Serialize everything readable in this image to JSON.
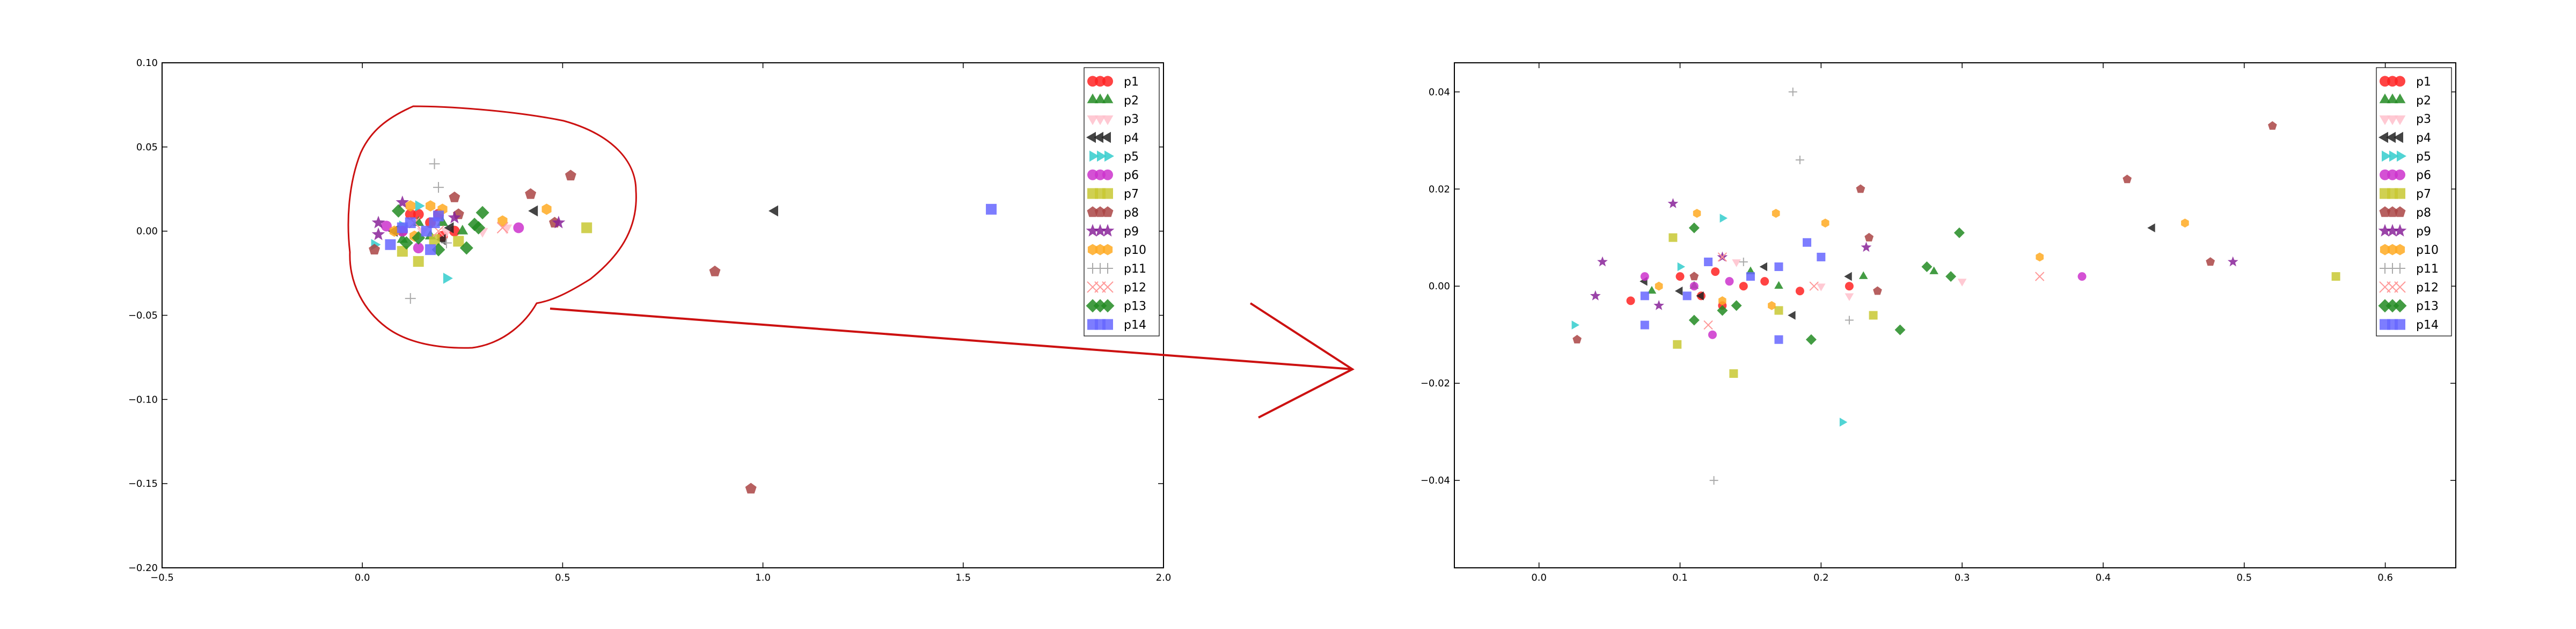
{
  "chart_data": [
    {
      "type": "scatter",
      "title": "",
      "xlabel": "",
      "ylabel": "",
      "xlim": [
        -0.5,
        2.0
      ],
      "ylim": [
        -0.2,
        0.1
      ],
      "xticks": [
        "−0.5",
        "0.0",
        "0.5",
        "1.0",
        "1.5",
        "2.0"
      ],
      "yticks": [
        "0.10",
        "0.05",
        "0.00",
        "−0.05",
        "−0.10",
        "−0.15",
        "−0.20"
      ],
      "xtick_values": [
        -0.5,
        0.0,
        0.5,
        1.0,
        1.5,
        2.0
      ],
      "ytick_values": [
        0.1,
        0.05,
        0.0,
        -0.05,
        -0.1,
        -0.15,
        -0.2
      ],
      "grid": false,
      "legend": "top-right",
      "annotation": "red freehand outline around the dense cluster with an arrow pointing to the zoomed plot",
      "series": [
        {
          "name": "p1",
          "marker": "circle",
          "color": "#ff2222",
          "points": [
            [
              0.12,
              0.01
            ],
            [
              0.17,
              0.005
            ],
            [
              0.2,
              -0.003
            ],
            [
              0.1,
              0.0
            ],
            [
              0.23,
              0.0
            ],
            [
              0.14,
              0.01
            ],
            [
              0.19,
              0.01
            ]
          ]
        },
        {
          "name": "p2",
          "marker": "triangle-up",
          "color": "#228b22",
          "points": [
            [
              0.09,
              0.0
            ],
            [
              0.14,
              0.005
            ],
            [
              0.2,
              0.005
            ],
            [
              0.25,
              0.0
            ],
            [
              0.1,
              -0.005
            ],
            [
              0.17,
              -0.003
            ]
          ]
        },
        {
          "name": "p3",
          "marker": "triangle-down",
          "color": "#ffc0cb",
          "points": [
            [
              0.21,
              0.0
            ],
            [
              0.3,
              0.0
            ],
            [
              0.36,
              0.002
            ],
            [
              0.15,
              0.0
            ]
          ]
        },
        {
          "name": "p4",
          "marker": "triangle-left",
          "color": "#222222",
          "points": [
            [
              1.03,
              0.012
            ],
            [
              0.43,
              0.012
            ],
            [
              0.08,
              0.0
            ],
            [
              0.2,
              -0.005
            ],
            [
              0.22,
              0.002
            ]
          ]
        },
        {
          "name": "p5",
          "marker": "triangle-right",
          "color": "#33cccc",
          "points": [
            [
              0.21,
              -0.028
            ],
            [
              0.03,
              -0.008
            ],
            [
              0.1,
              0.003
            ],
            [
              0.14,
              0.015
            ]
          ]
        },
        {
          "name": "p6",
          "marker": "circle",
          "color": "#cc33cc",
          "points": [
            [
              0.39,
              0.002
            ],
            [
              0.1,
              0.0
            ],
            [
              0.06,
              0.003
            ],
            [
              0.14,
              -0.01
            ]
          ]
        },
        {
          "name": "p7",
          "marker": "square",
          "color": "#c8c832",
          "points": [
            [
              0.56,
              0.002
            ],
            [
              0.14,
              -0.018
            ],
            [
              0.1,
              -0.012
            ],
            [
              0.24,
              -0.006
            ],
            [
              0.18,
              -0.005
            ]
          ]
        },
        {
          "name": "p8",
          "marker": "pentagon",
          "color": "#aa4444",
          "points": [
            [
              0.97,
              -0.153
            ],
            [
              0.88,
              -0.024
            ],
            [
              0.52,
              0.033
            ],
            [
              0.42,
              0.022
            ],
            [
              0.48,
              0.005
            ],
            [
              0.03,
              -0.011
            ],
            [
              0.23,
              0.02
            ],
            [
              0.24,
              0.01
            ]
          ]
        },
        {
          "name": "p9",
          "marker": "star",
          "color": "#882299",
          "points": [
            [
              0.49,
              0.005
            ],
            [
              0.1,
              0.017
            ],
            [
              0.04,
              0.005
            ],
            [
              0.23,
              0.008
            ],
            [
              0.04,
              -0.002
            ]
          ]
        },
        {
          "name": "p10",
          "marker": "hexagon",
          "color": "#ffaa22",
          "points": [
            [
              0.35,
              0.006
            ],
            [
              0.46,
              0.013
            ],
            [
              0.12,
              0.015
            ],
            [
              0.17,
              0.015
            ],
            [
              0.2,
              0.013
            ],
            [
              0.08,
              0.0
            ],
            [
              0.13,
              -0.003
            ]
          ]
        },
        {
          "name": "p11",
          "marker": "plus",
          "color": "#aaaaaa",
          "points": [
            [
              0.18,
              0.04
            ],
            [
              0.12,
              -0.04
            ],
            [
              0.19,
              0.026
            ],
            [
              0.21,
              -0.007
            ]
          ]
        },
        {
          "name": "p12",
          "marker": "x",
          "color": "#ff9999",
          "points": [
            [
              0.35,
              0.002
            ],
            [
              0.19,
              0.0
            ],
            [
              0.13,
              0.005
            ]
          ]
        },
        {
          "name": "p13",
          "marker": "diamond",
          "color": "#228b22",
          "points": [
            [
              0.3,
              0.011
            ],
            [
              0.28,
              0.004
            ],
            [
              0.26,
              -0.01
            ],
            [
              0.19,
              -0.011
            ],
            [
              0.11,
              -0.007
            ],
            [
              0.14,
              -0.004
            ],
            [
              0.09,
              0.012
            ],
            [
              0.29,
              0.002
            ]
          ]
        },
        {
          "name": "p14",
          "marker": "square",
          "color": "#6666ff",
          "points": [
            [
              1.57,
              0.013
            ],
            [
              0.19,
              0.009
            ],
            [
              0.16,
              0.0
            ],
            [
              0.07,
              -0.008
            ],
            [
              0.17,
              -0.011
            ],
            [
              0.1,
              0.002
            ],
            [
              0.12,
              0.005
            ],
            [
              0.18,
              0.005
            ]
          ]
        }
      ]
    },
    {
      "type": "scatter",
      "title": "",
      "xlabel": "",
      "ylabel": "",
      "xlim": [
        -0.06,
        0.65
      ],
      "ylim": [
        -0.058,
        0.046
      ],
      "xticks": [
        "0.0",
        "0.1",
        "0.2",
        "0.3",
        "0.4",
        "0.5",
        "0.6"
      ],
      "yticks": [
        "0.04",
        "0.02",
        "0.00",
        "−0.02",
        "−0.04"
      ],
      "xtick_values": [
        0.0,
        0.1,
        0.2,
        0.3,
        0.4,
        0.5,
        0.6
      ],
      "ytick_values": [
        0.04,
        0.02,
        0.0,
        -0.02,
        -0.04
      ],
      "grid": false,
      "legend": "top-right",
      "series": [
        {
          "name": "p1",
          "marker": "circle",
          "color": "#ff2222",
          "points": [
            [
              0.065,
              -0.003
            ],
            [
              0.1,
              0.002
            ],
            [
              0.115,
              -0.002
            ],
            [
              0.125,
              0.003
            ],
            [
              0.13,
              -0.004
            ],
            [
              0.145,
              0.0
            ],
            [
              0.16,
              0.001
            ],
            [
              0.185,
              -0.001
            ],
            [
              0.22,
              0.0
            ]
          ]
        },
        {
          "name": "p2",
          "marker": "triangle-up",
          "color": "#228b22",
          "points": [
            [
              0.08,
              -0.001
            ],
            [
              0.11,
              0.0
            ],
            [
              0.15,
              0.003
            ],
            [
              0.17,
              0.0
            ],
            [
              0.23,
              0.002
            ],
            [
              0.28,
              0.003
            ]
          ]
        },
        {
          "name": "p3",
          "marker": "triangle-down",
          "color": "#ffc0cb",
          "points": [
            [
              0.2,
              0.0
            ],
            [
              0.3,
              0.001
            ],
            [
              0.22,
              -0.002
            ],
            [
              0.14,
              0.005
            ]
          ]
        },
        {
          "name": "p4",
          "marker": "triangle-left",
          "color": "#222222",
          "points": [
            [
              0.435,
              0.012
            ],
            [
              0.075,
              0.001
            ],
            [
              0.115,
              -0.002
            ],
            [
              0.16,
              0.004
            ],
            [
              0.18,
              -0.006
            ],
            [
              0.22,
              0.002
            ],
            [
              0.1,
              -0.001
            ]
          ]
        },
        {
          "name": "p5",
          "marker": "triangle-right",
          "color": "#33cccc",
          "points": [
            [
              0.215,
              -0.028
            ],
            [
              0.025,
              -0.008
            ],
            [
              0.1,
              0.004
            ],
            [
              0.13,
              0.014
            ]
          ]
        },
        {
          "name": "p6",
          "marker": "circle",
          "color": "#cc33cc",
          "points": [
            [
              0.385,
              0.002
            ],
            [
              0.11,
              0.0
            ],
            [
              0.075,
              0.002
            ],
            [
              0.123,
              -0.01
            ],
            [
              0.135,
              0.001
            ]
          ]
        },
        {
          "name": "p7",
          "marker": "square",
          "color": "#c8c832",
          "points": [
            [
              0.565,
              0.002
            ],
            [
              0.138,
              -0.018
            ],
            [
              0.098,
              -0.012
            ],
            [
              0.237,
              -0.006
            ],
            [
              0.17,
              -0.005
            ],
            [
              0.095,
              0.01
            ]
          ]
        },
        {
          "name": "p8",
          "marker": "pentagon",
          "color": "#aa4444",
          "points": [
            [
              0.52,
              0.033
            ],
            [
              0.417,
              0.022
            ],
            [
              0.476,
              0.005
            ],
            [
              0.027,
              -0.011
            ],
            [
              0.228,
              0.02
            ],
            [
              0.234,
              0.01
            ],
            [
              0.24,
              -0.001
            ],
            [
              0.11,
              0.002
            ]
          ]
        },
        {
          "name": "p9",
          "marker": "star",
          "color": "#882299",
          "points": [
            [
              0.492,
              0.005
            ],
            [
              0.095,
              0.017
            ],
            [
              0.045,
              0.005
            ],
            [
              0.232,
              0.008
            ],
            [
              0.04,
              -0.002
            ],
            [
              0.085,
              -0.004
            ],
            [
              0.13,
              0.006
            ]
          ]
        },
        {
          "name": "p10",
          "marker": "hexagon",
          "color": "#ffaa22",
          "points": [
            [
              0.355,
              0.006
            ],
            [
              0.458,
              0.013
            ],
            [
              0.112,
              0.015
            ],
            [
              0.168,
              0.015
            ],
            [
              0.203,
              0.013
            ],
            [
              0.085,
              0.0
            ],
            [
              0.13,
              -0.003
            ],
            [
              0.165,
              -0.004
            ]
          ]
        },
        {
          "name": "p11",
          "marker": "plus",
          "color": "#aaaaaa",
          "points": [
            [
              0.18,
              0.04
            ],
            [
              0.124,
              -0.04
            ],
            [
              0.185,
              0.026
            ],
            [
              0.22,
              -0.007
            ],
            [
              0.145,
              0.005
            ]
          ]
        },
        {
          "name": "p12",
          "marker": "x",
          "color": "#ff9999",
          "points": [
            [
              0.355,
              0.002
            ],
            [
              0.195,
              0.0
            ],
            [
              0.13,
              0.006
            ],
            [
              0.12,
              -0.008
            ]
          ]
        },
        {
          "name": "p13",
          "marker": "diamond",
          "color": "#228b22",
          "points": [
            [
              0.298,
              0.011
            ],
            [
              0.275,
              0.004
            ],
            [
              0.256,
              -0.009
            ],
            [
              0.193,
              -0.011
            ],
            [
              0.11,
              -0.007
            ],
            [
              0.14,
              -0.004
            ],
            [
              0.11,
              0.012
            ],
            [
              0.292,
              0.002
            ],
            [
              0.13,
              -0.005
            ]
          ]
        },
        {
          "name": "p14",
          "marker": "square",
          "color": "#6666ff",
          "points": [
            [
              0.19,
              0.009
            ],
            [
              0.2,
              0.006
            ],
            [
              0.17,
              0.004
            ],
            [
              0.075,
              -0.008
            ],
            [
              0.17,
              -0.011
            ],
            [
              0.075,
              -0.002
            ],
            [
              0.12,
              0.005
            ],
            [
              0.15,
              0.002
            ],
            [
              0.105,
              -0.002
            ]
          ]
        }
      ]
    }
  ]
}
